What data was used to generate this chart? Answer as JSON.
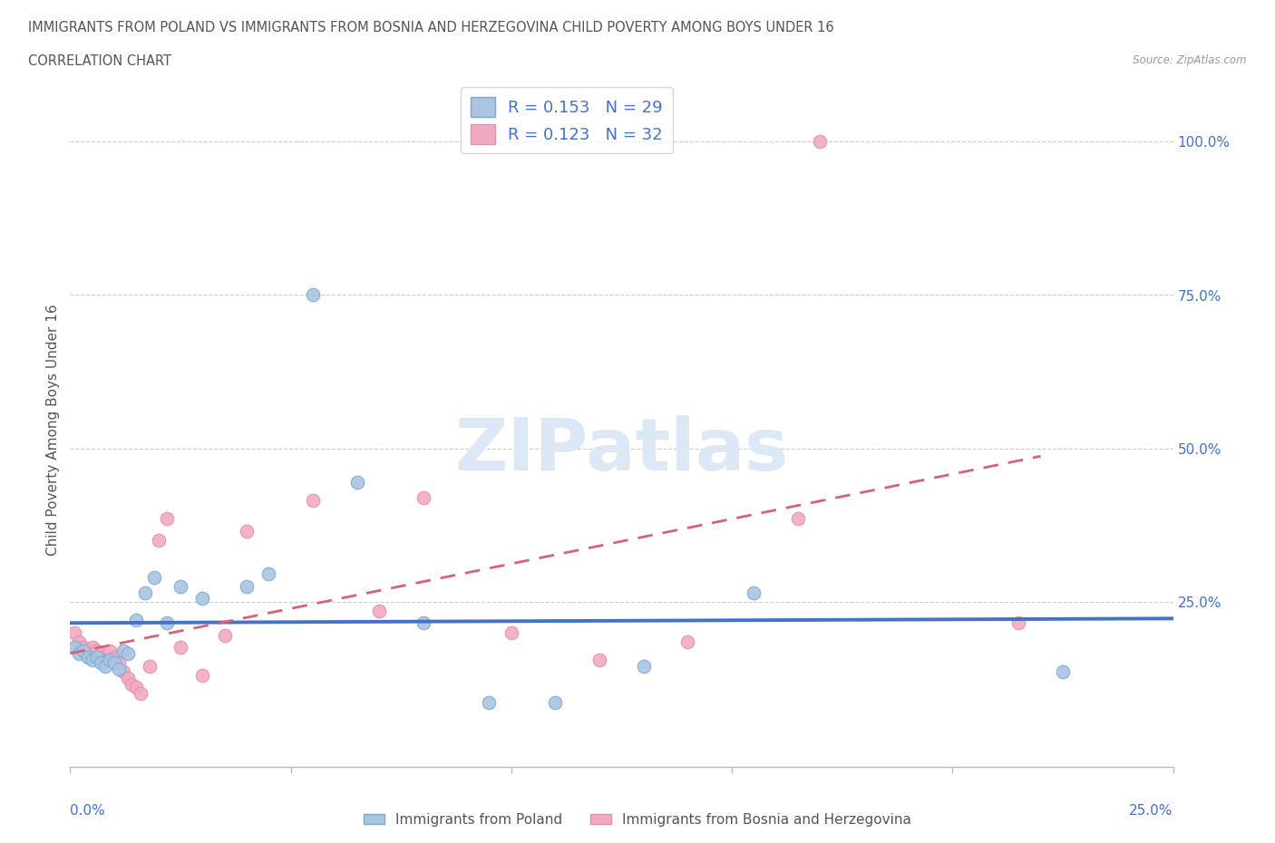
{
  "title_line1": "IMMIGRANTS FROM POLAND VS IMMIGRANTS FROM BOSNIA AND HERZEGOVINA CHILD POVERTY AMONG BOYS UNDER 16",
  "title_line2": "CORRELATION CHART",
  "source": "Source: ZipAtlas.com",
  "ylabel": "Child Poverty Among Boys Under 16",
  "r_poland": 0.153,
  "n_poland": 29,
  "r_bosnia": 0.123,
  "n_bosnia": 32,
  "color_poland": "#aac4e2",
  "color_bosnia": "#f2aac2",
  "color_poland_line": "#4472c4",
  "color_bosnia_line": "#d9607a",
  "watermark": "ZIPatlas",
  "watermark_color": "#dce8f5",
  "xlim": [
    0.0,
    0.25
  ],
  "ylim": [
    -0.02,
    1.08
  ],
  "poland_x": [
    0.001,
    0.002,
    0.003,
    0.004,
    0.005,
    0.006,
    0.007,
    0.008,
    0.009,
    0.01,
    0.011,
    0.012,
    0.013,
    0.015,
    0.017,
    0.019,
    0.022,
    0.025,
    0.03,
    0.04,
    0.045,
    0.055,
    0.065,
    0.08,
    0.095,
    0.11,
    0.13,
    0.155,
    0.225
  ],
  "poland_y": [
    0.175,
    0.165,
    0.17,
    0.16,
    0.155,
    0.16,
    0.15,
    0.145,
    0.155,
    0.15,
    0.14,
    0.17,
    0.165,
    0.22,
    0.265,
    0.29,
    0.215,
    0.275,
    0.255,
    0.275,
    0.295,
    0.75,
    0.445,
    0.215,
    0.085,
    0.085,
    0.145,
    0.265,
    0.135
  ],
  "bosnia_x": [
    0.001,
    0.002,
    0.003,
    0.004,
    0.005,
    0.006,
    0.007,
    0.008,
    0.009,
    0.01,
    0.011,
    0.012,
    0.013,
    0.014,
    0.015,
    0.016,
    0.018,
    0.02,
    0.022,
    0.025,
    0.03,
    0.035,
    0.04,
    0.055,
    0.07,
    0.08,
    0.1,
    0.12,
    0.14,
    0.165,
    0.17,
    0.215
  ],
  "bosnia_y": [
    0.2,
    0.185,
    0.175,
    0.165,
    0.175,
    0.17,
    0.16,
    0.155,
    0.17,
    0.16,
    0.15,
    0.135,
    0.125,
    0.115,
    0.11,
    0.1,
    0.145,
    0.35,
    0.385,
    0.175,
    0.13,
    0.195,
    0.365,
    0.415,
    0.235,
    0.42,
    0.2,
    0.155,
    0.185,
    0.385,
    1.0,
    0.215
  ],
  "legend_label_poland": "Immigrants from Poland",
  "legend_label_bosnia": "Immigrants from Bosnia and Herzegovina",
  "title_color": "#555555",
  "axis_color": "#4472c4",
  "tick_color": "#888888",
  "grid_color": "#cccccc",
  "yticks": [
    0.0,
    0.25,
    0.5,
    0.75,
    1.0
  ],
  "ytick_labels": [
    "",
    "25.0%",
    "50.0%",
    "75.0%",
    "100.0%"
  ]
}
